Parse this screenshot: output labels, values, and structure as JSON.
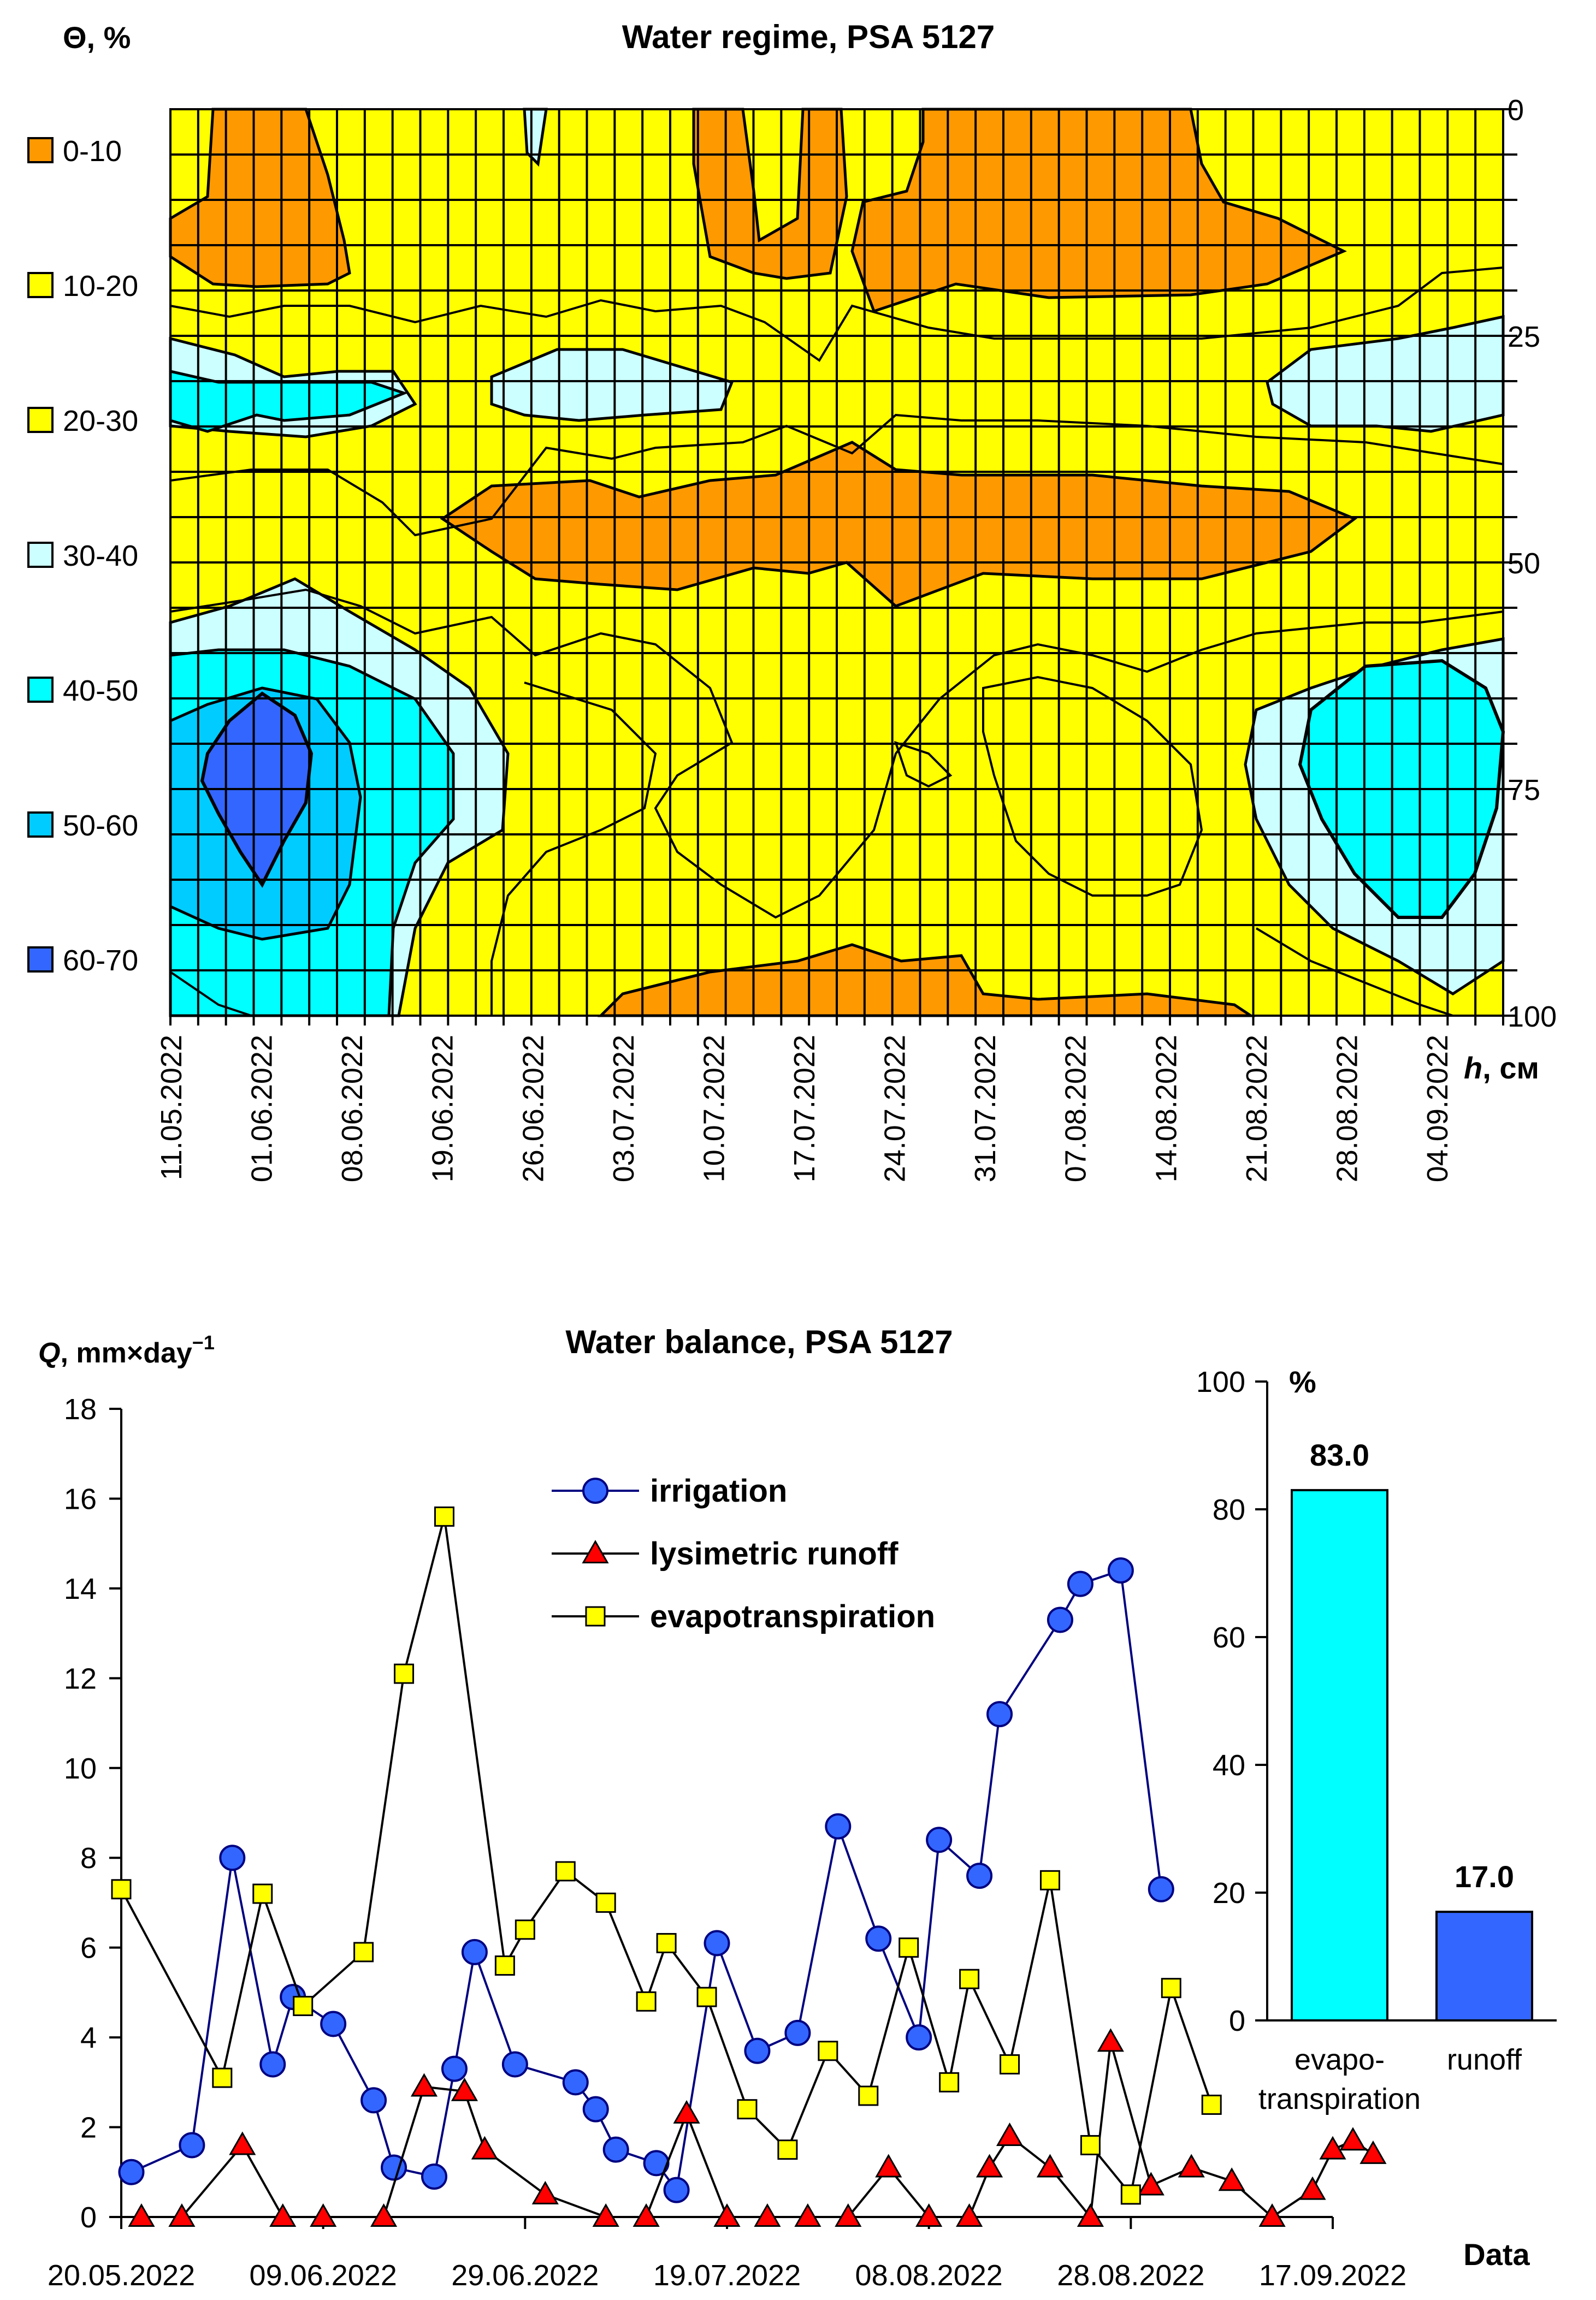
{
  "chart_data": [
    {
      "type": "heatmap",
      "title": "Water regime, PSA 5127",
      "legend_title": "Θ, %",
      "ylabel_var": "h",
      "ylabel_unit": ", см",
      "y_ticks": [
        "0",
        "25",
        "50",
        "75",
        "100"
      ],
      "y_tick_values": [
        0,
        25,
        50,
        75,
        100
      ],
      "ylim": [
        0,
        100
      ],
      "x_tick_labels": [
        "11.05.2022",
        "01.06.2022",
        "08.06.2022",
        "19.06.2022",
        "26.06.2022",
        "03.07.2022",
        "10.07.2022",
        "17.07.2022",
        "24.07.2022",
        "31.07.2022",
        "07.08.2022",
        "14.08.2022",
        "21.08.2022",
        "28.08.2022",
        "04.09.2022"
      ],
      "legend_placement": "left",
      "classes": [
        {
          "label": "0-10",
          "color": "#FF9900"
        },
        {
          "label": "10-20",
          "color": "#FFFF00"
        },
        {
          "label": "20-30",
          "color": "#FFFF00"
        },
        {
          "label": "30-40",
          "color": "#CCFFFF"
        },
        {
          "label": "40-50",
          "color": "#00FFFF"
        },
        {
          "label": "50-60",
          "color": "#00CCFF"
        },
        {
          "label": "60-70",
          "color": "#3366FF"
        }
      ],
      "grid": true
    },
    {
      "type": "line",
      "title": "Water balance, PSA 5127",
      "ylabel_var": "Q",
      "ylabel_unit": ", mm×day",
      "ylabel_sup": "−1",
      "xlabel": "Data",
      "ylim": [
        0,
        18
      ],
      "y_ticks": [
        "0",
        "2",
        "4",
        "6",
        "8",
        "10",
        "12",
        "14",
        "16",
        "18"
      ],
      "x_tick_labels": [
        "20.05.2022",
        "09.06.2022",
        "29.06.2022",
        "19.07.2022",
        "08.08.2022",
        "28.08.2022",
        "17.09.2022"
      ],
      "x_tick_dates": [
        "2022-05-20",
        "2022-06-09",
        "2022-06-29",
        "2022-07-19",
        "2022-08-08",
        "2022-08-28",
        "2022-09-17"
      ],
      "xlim": [
        "2022-05-20",
        "2022-09-17"
      ],
      "legend_placement": "top-center",
      "series": [
        {
          "name": "irrigation",
          "color": "#3366FF",
          "line_color": "#000080",
          "marker": "circle",
          "points": [
            [
              "2022-05-21",
              1.0
            ],
            [
              "2022-05-27",
              1.6
            ],
            [
              "2022-05-31",
              8.0
            ],
            [
              "2022-06-04",
              3.4
            ],
            [
              "2022-06-06",
              4.9
            ],
            [
              "2022-06-10",
              4.3
            ],
            [
              "2022-06-14",
              2.6
            ],
            [
              "2022-06-16",
              1.1
            ],
            [
              "2022-06-20",
              0.9
            ],
            [
              "2022-06-22",
              3.3
            ],
            [
              "2022-06-24",
              5.9
            ],
            [
              "2022-06-28",
              3.4
            ],
            [
              "2022-07-04",
              3.0
            ],
            [
              "2022-07-06",
              2.4
            ],
            [
              "2022-07-08",
              1.5
            ],
            [
              "2022-07-12",
              1.2
            ],
            [
              "2022-07-14",
              0.6
            ],
            [
              "2022-07-18",
              6.1
            ],
            [
              "2022-07-22",
              3.7
            ],
            [
              "2022-07-26",
              4.1
            ],
            [
              "2022-07-30",
              8.7
            ],
            [
              "2022-08-03",
              6.2
            ],
            [
              "2022-08-07",
              4.0
            ],
            [
              "2022-08-09",
              8.4
            ],
            [
              "2022-08-13",
              7.6
            ],
            [
              "2022-08-15",
              11.2
            ],
            [
              "2022-08-21",
              13.3
            ],
            [
              "2022-08-23",
              14.1
            ],
            [
              "2022-08-27",
              14.4
            ],
            [
              "2022-08-31",
              7.3
            ]
          ]
        },
        {
          "name": "lysimetric runoff",
          "color": "#FF0000",
          "line_color": "#000000",
          "marker": "triangle",
          "points": [
            [
              "2022-05-22",
              0.0
            ],
            [
              "2022-05-26",
              0.0
            ],
            [
              "2022-06-01",
              1.6
            ],
            [
              "2022-06-05",
              0.0
            ],
            [
              "2022-06-09",
              0.0
            ],
            [
              "2022-06-15",
              0.0
            ],
            [
              "2022-06-19",
              2.9
            ],
            [
              "2022-06-23",
              2.8
            ],
            [
              "2022-06-25",
              1.5
            ],
            [
              "2022-07-01",
              0.5
            ],
            [
              "2022-07-07",
              0.0
            ],
            [
              "2022-07-11",
              0.0
            ],
            [
              "2022-07-15",
              2.3
            ],
            [
              "2022-07-19",
              0.0
            ],
            [
              "2022-07-23",
              0.0
            ],
            [
              "2022-07-27",
              0.0
            ],
            [
              "2022-07-31",
              0.0
            ],
            [
              "2022-08-04",
              1.1
            ],
            [
              "2022-08-08",
              0.0
            ],
            [
              "2022-08-12",
              0.0
            ],
            [
              "2022-08-14",
              1.1
            ],
            [
              "2022-08-16",
              1.8
            ],
            [
              "2022-08-20",
              1.1
            ],
            [
              "2022-08-24",
              0.0
            ],
            [
              "2022-08-26",
              3.9
            ],
            [
              "2022-08-30",
              0.7
            ],
            [
              "2022-09-03",
              1.1
            ],
            [
              "2022-09-07",
              0.8
            ],
            [
              "2022-09-11",
              0.0
            ],
            [
              "2022-09-15",
              0.6
            ],
            [
              "2022-09-17",
              1.5
            ],
            [
              "2022-09-19",
              1.7
            ],
            [
              "2022-09-21",
              1.4
            ]
          ]
        },
        {
          "name": "evapotranspiration",
          "color": "#FFFF00",
          "line_color": "#000000",
          "marker": "square",
          "points": [
            [
              "2022-05-20",
              7.3
            ],
            [
              "2022-05-30",
              3.1
            ],
            [
              "2022-06-03",
              7.2
            ],
            [
              "2022-06-07",
              4.7
            ],
            [
              "2022-06-13",
              5.9
            ],
            [
              "2022-06-17",
              12.1
            ],
            [
              "2022-06-21",
              15.6
            ],
            [
              "2022-06-27",
              5.6
            ],
            [
              "2022-06-29",
              6.4
            ],
            [
              "2022-07-03",
              7.7
            ],
            [
              "2022-07-07",
              7.0
            ],
            [
              "2022-07-11",
              4.8
            ],
            [
              "2022-07-13",
              6.1
            ],
            [
              "2022-07-17",
              4.9
            ],
            [
              "2022-07-21",
              2.4
            ],
            [
              "2022-07-25",
              1.5
            ],
            [
              "2022-07-29",
              3.7
            ],
            [
              "2022-08-02",
              2.7
            ],
            [
              "2022-08-06",
              6.0
            ],
            [
              "2022-08-10",
              3.0
            ],
            [
              "2022-08-12",
              5.3
            ],
            [
              "2022-08-16",
              3.4
            ],
            [
              "2022-08-20",
              7.5
            ],
            [
              "2022-08-24",
              1.6
            ],
            [
              "2022-08-28",
              0.5
            ],
            [
              "2022-09-01",
              5.1
            ],
            [
              "2022-09-05",
              2.5
            ]
          ]
        }
      ],
      "grid": false
    },
    {
      "type": "bar",
      "ylabel": "%",
      "ylim": [
        0,
        100
      ],
      "y_ticks": [
        "0",
        "20",
        "40",
        "60",
        "80",
        "100"
      ],
      "categories": [
        [
          "evapo-",
          "transpiration"
        ],
        [
          "runoff"
        ]
      ],
      "values": [
        83.0,
        17.0
      ],
      "value_labels": [
        "83.0",
        "17.0"
      ],
      "colors": [
        "#00FFFF",
        "#3366FF"
      ]
    }
  ]
}
